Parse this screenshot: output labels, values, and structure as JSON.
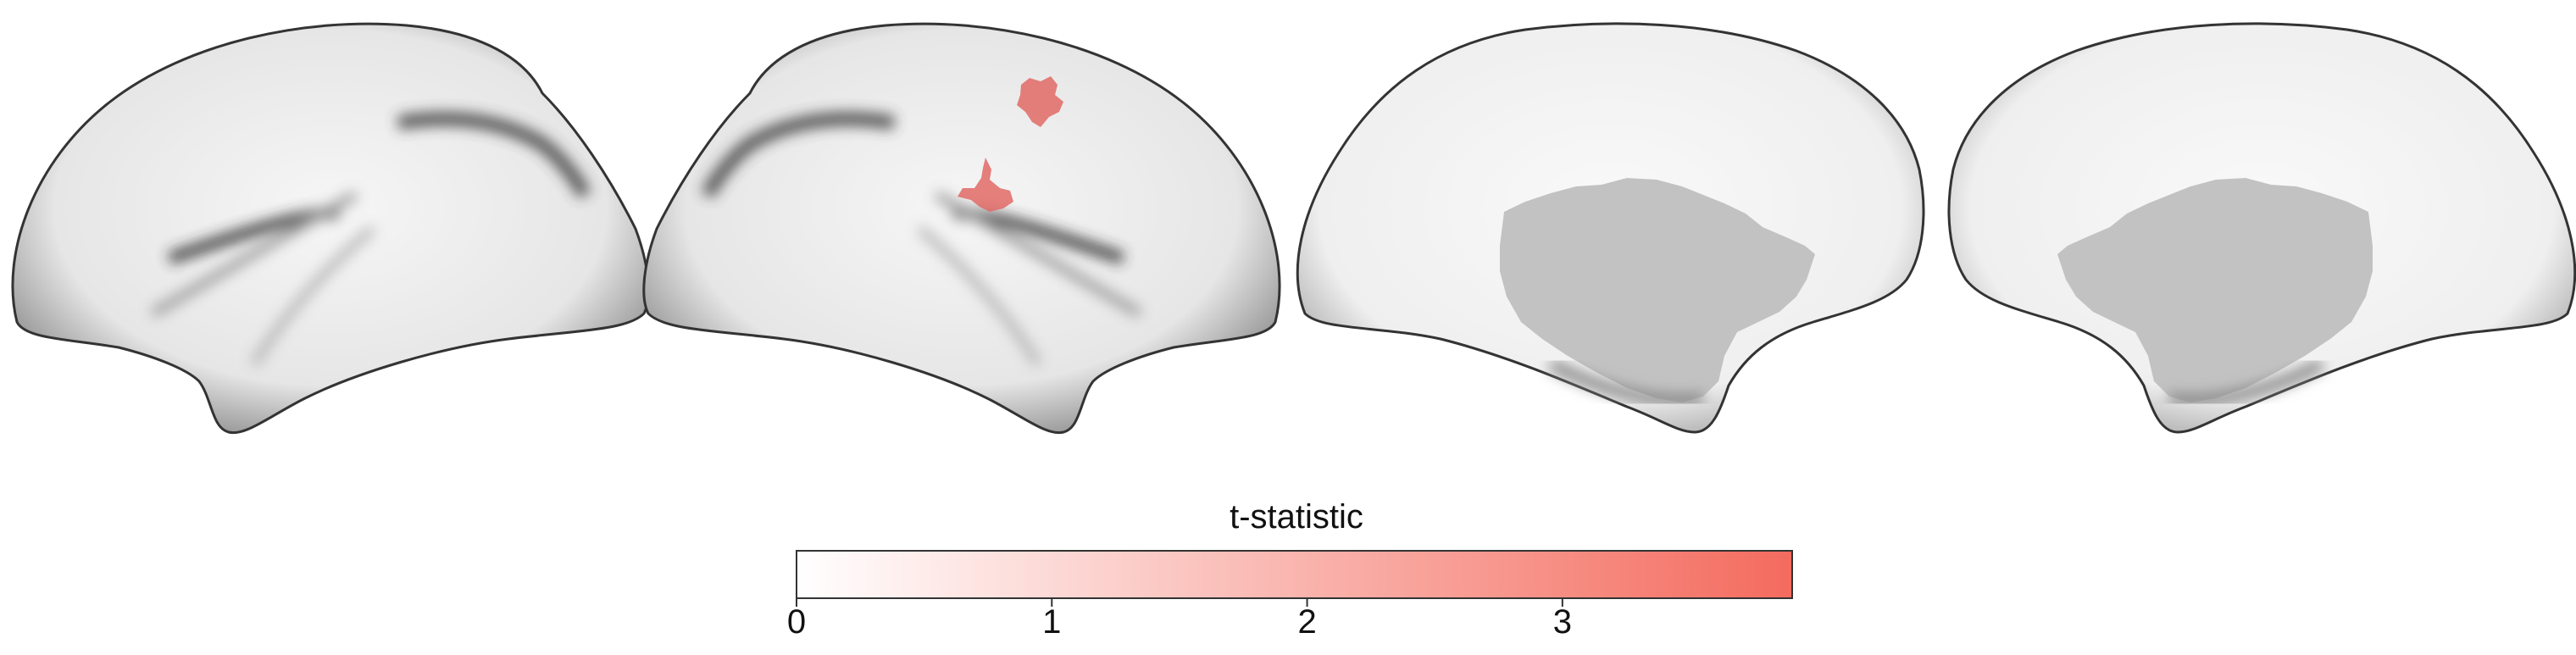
{
  "figure": {
    "panels": [
      "left-lateral",
      "right-lateral",
      "left-medial",
      "right-medial"
    ]
  },
  "colorbar": {
    "label": "t-statistic",
    "ticks": [
      "0",
      "1",
      "2",
      "3"
    ],
    "tick_values": [
      0,
      1,
      2,
      3
    ],
    "min": 0,
    "max": 3.9,
    "color_low": "#ffffff",
    "color_high": "#f46b5e"
  },
  "colors": {
    "cortex_light": "#f4f4f4",
    "cortex_dark": "#3a3a3a",
    "medial_wall": "#c2c2c2",
    "cluster": "#e06a66"
  }
}
